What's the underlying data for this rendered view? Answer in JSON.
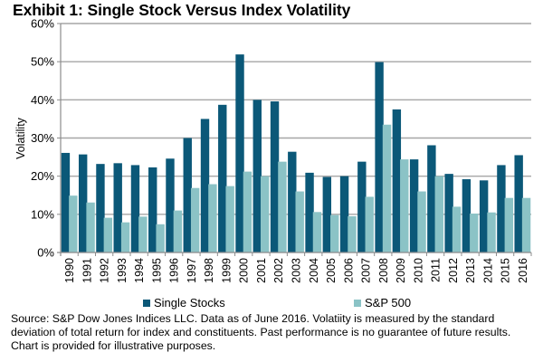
{
  "chart_data": {
    "type": "bar",
    "title": "Exhibit 1: Single Stock Versus Index Volatility",
    "xlabel": "",
    "ylabel": "Volatility",
    "ylim": [
      0,
      60
    ],
    "yticks": [
      "0%",
      "10%",
      "20%",
      "30%",
      "40%",
      "50%",
      "60%"
    ],
    "ytick_values": [
      0,
      10,
      20,
      30,
      40,
      50,
      60
    ],
    "grid": true,
    "legend_position": "bottom",
    "categories": [
      "1990",
      "1991",
      "1992",
      "1993",
      "1994",
      "1995",
      "1996",
      "1997",
      "1998",
      "1999",
      "2000",
      "2001",
      "2002",
      "2003",
      "2004",
      "2005",
      "2006",
      "2007",
      "2008",
      "2009",
      "2010",
      "2011",
      "2012",
      "2013",
      "2014",
      "2015",
      "2016"
    ],
    "series": [
      {
        "name": "Single Stocks",
        "color": "#0b5878",
        "values": [
          26.1,
          25.7,
          23.2,
          23.4,
          22.9,
          22.3,
          24.6,
          30.0,
          35.0,
          38.7,
          51.9,
          40.0,
          39.6,
          26.4,
          20.9,
          19.8,
          20.0,
          23.8,
          49.9,
          37.5,
          24.4,
          28.1,
          20.6,
          19.2,
          18.9,
          22.9,
          25.5
        ]
      },
      {
        "name": "S&P 500",
        "color": "#8bc3c6",
        "values": [
          14.9,
          13.1,
          9.1,
          7.9,
          9.4,
          7.4,
          11.0,
          16.9,
          17.9,
          17.4,
          21.2,
          20.0,
          23.8,
          16.0,
          10.6,
          9.8,
          9.5,
          14.6,
          33.5,
          24.4,
          16.0,
          20.0,
          12.0,
          10.2,
          10.5,
          14.3,
          14.3
        ]
      }
    ]
  },
  "source_lines": [
    "Source: S&P Dow Jones Indices LLC.  Data as of June 2016.  Volatiity is measured by the standard",
    "deviation of total return for index and constituents.  Past performance is no guarantee of future results.",
    "Chart is provided for illustrative purposes."
  ]
}
